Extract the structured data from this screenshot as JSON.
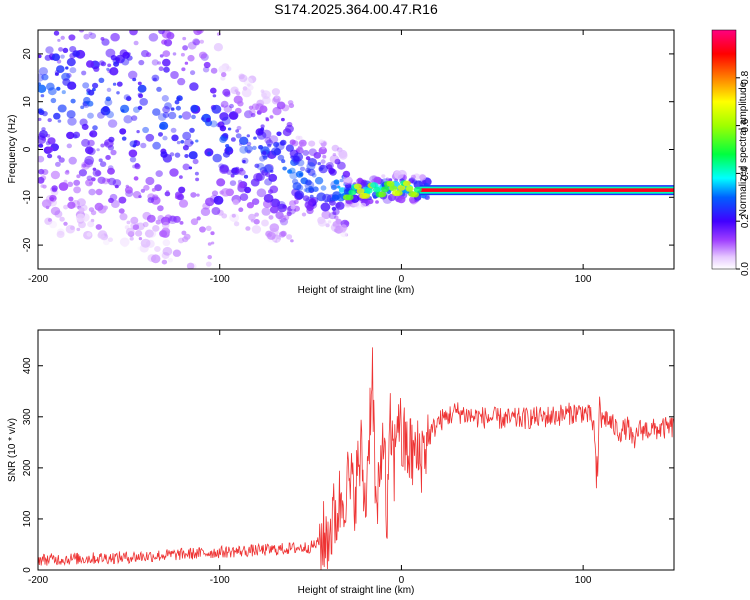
{
  "title": "S174.2025.364.00.47.R16",
  "chart_data": [
    {
      "type": "heatmap",
      "name": "spectrogram",
      "xlabel": "Height of straight line (km)",
      "ylabel": "Frequency (Hz)",
      "xlim": [
        -200,
        150
      ],
      "ylim": [
        -25,
        25
      ],
      "xticks": [
        -200,
        -100,
        0,
        100
      ],
      "yticks": [
        -20,
        -10,
        0,
        10,
        20
      ],
      "xtick_labels": [
        "-200",
        "-100",
        "0",
        "100"
      ],
      "ytick_labels": [
        "-20",
        "-10",
        "0",
        "10",
        "20"
      ],
      "ridge": {
        "description": "Carrier line at constant frequency",
        "frequency_hz": -8.5,
        "from_km": 10,
        "to_km": 150
      },
      "trend": [
        {
          "x": -200,
          "y": 13
        },
        {
          "x": -150,
          "y": 9
        },
        {
          "x": -100,
          "y": 2
        },
        {
          "x": -60,
          "y": -5
        },
        {
          "x": -30,
          "y": -9
        },
        {
          "x": 0,
          "y": -8
        },
        {
          "x": 10,
          "y": -8.5
        }
      ],
      "colorbar": {
        "label": "Normalized spectral amplitude",
        "range": [
          0.0,
          1.0
        ],
        "ticks": [
          0.0,
          0.2,
          0.4,
          0.6,
          0.8
        ],
        "tick_labels": [
          "0.0",
          "0.2",
          "0.4",
          "0.6",
          "0.8"
        ]
      }
    },
    {
      "type": "line",
      "name": "snr",
      "xlabel": "Height of straight line (km)",
      "ylabel": "SNR (10 * v/v)",
      "xlim": [
        -200,
        150
      ],
      "ylim": [
        0,
        470
      ],
      "xticks": [
        -200,
        -100,
        0,
        100
      ],
      "yticks": [
        0,
        100,
        200,
        300,
        400
      ],
      "xtick_labels": [
        "-200",
        "-100",
        "0",
        "100"
      ],
      "ytick_labels": [
        "0",
        "100",
        "200",
        "300",
        "400"
      ],
      "series": [
        {
          "name": "SNR",
          "color": "#ee3333",
          "x": [
            -200,
            -150,
            -100,
            -70,
            -50,
            -42,
            -38,
            -34,
            -30,
            -26,
            -22,
            -20,
            -18,
            -16,
            -14,
            -12,
            -10,
            -8,
            -6,
            -4,
            -2,
            0,
            5,
            10,
            15,
            20,
            30,
            40,
            60,
            80,
            100,
            104,
            106,
            107,
            108,
            109,
            110,
            112,
            120,
            125,
            128,
            130,
            140,
            150
          ],
          "y": [
            20,
            25,
            35,
            40,
            45,
            60,
            90,
            130,
            170,
            150,
            230,
            120,
            250,
            410,
            100,
            150,
            300,
            80,
            280,
            200,
            330,
            250,
            230,
            220,
            260,
            290,
            310,
            300,
            295,
            300,
            310,
            300,
            280,
            200,
            160,
            350,
            290,
            300,
            270,
            280,
            240,
            275,
            275,
            280
          ]
        }
      ]
    }
  ]
}
